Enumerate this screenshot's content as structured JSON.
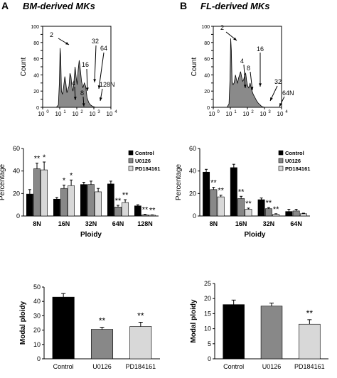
{
  "panels": {
    "A": {
      "letter": "A",
      "title": "BM-derived MKs"
    },
    "B": {
      "letter": "B",
      "title": "FL-derived MKs"
    }
  },
  "chart_data": [
    {
      "id": "A-hist",
      "type": "area",
      "title": "",
      "xlabel": "",
      "ylabel": "Count",
      "yticks": [
        "0",
        "10",
        "20",
        "30",
        "40",
        "50",
        "60",
        "70",
        "80",
        "90",
        "100"
      ],
      "xticks": [
        "10",
        "10",
        "10",
        "10",
        "10"
      ],
      "xtick_exponents": [
        "0",
        "1",
        "2",
        "3",
        "4"
      ],
      "xlim": [
        0,
        4
      ],
      "ylim": [
        0,
        100
      ],
      "x": [
        0.0,
        0.8,
        0.92,
        0.98,
        1.02,
        1.06,
        1.1,
        1.16,
        1.22,
        1.3,
        1.36,
        1.42,
        1.48,
        1.54,
        1.6,
        1.66,
        1.72,
        1.78,
        1.84,
        1.9,
        1.96,
        2.02,
        2.08,
        2.14,
        2.2,
        2.28,
        2.36,
        2.44,
        2.52,
        2.6,
        2.7,
        2.8,
        2.95,
        3.1,
        4.0
      ],
      "y": [
        0,
        0,
        3,
        30,
        73,
        62,
        20,
        16,
        24,
        38,
        30,
        18,
        22,
        26,
        42,
        38,
        24,
        20,
        34,
        50,
        38,
        28,
        46,
        58,
        48,
        32,
        24,
        30,
        26,
        12,
        6,
        3,
        1,
        0,
        0
      ],
      "annotations": [
        "2",
        "4",
        "8",
        "16",
        "32",
        "64",
        "128N"
      ]
    },
    {
      "id": "B-hist",
      "type": "area",
      "title": "",
      "xlabel": "",
      "ylabel": "Count",
      "yticks": [
        "0",
        "10",
        "20",
        "30",
        "40",
        "50",
        "60",
        "70",
        "80",
        "90",
        "100"
      ],
      "xticks": [
        "10",
        "10",
        "10",
        "10",
        "10"
      ],
      "xtick_exponents": [
        "0",
        "1",
        "2",
        "3",
        "4"
      ],
      "xlim": [
        0,
        4
      ],
      "ylim": [
        0,
        100
      ],
      "x": [
        0.0,
        0.8,
        0.92,
        0.98,
        1.02,
        1.06,
        1.1,
        1.16,
        1.22,
        1.3,
        1.36,
        1.42,
        1.48,
        1.54,
        1.6,
        1.66,
        1.72,
        1.78,
        1.84,
        1.9,
        1.96,
        2.02,
        2.08,
        2.16,
        2.24,
        2.34,
        2.44,
        2.54,
        2.64,
        2.74,
        2.84,
        3.0,
        4.0
      ],
      "y": [
        0,
        0,
        4,
        35,
        85,
        70,
        32,
        28,
        30,
        40,
        34,
        30,
        36,
        40,
        44,
        38,
        32,
        34,
        40,
        42,
        32,
        26,
        24,
        30,
        22,
        16,
        12,
        8,
        5,
        3,
        1,
        0,
        0
      ],
      "annotations": [
        "2",
        "4",
        "8",
        "16",
        "32",
        "64N"
      ]
    },
    {
      "id": "A-ploidy",
      "type": "bar",
      "title": "",
      "xlabel": "Ploidy",
      "ylabel": "Percentage",
      "categories": [
        "8N",
        "16N",
        "32N",
        "64N",
        "128N"
      ],
      "ylim": [
        0,
        60
      ],
      "yticks": [
        "0",
        "20",
        "40",
        "60"
      ],
      "legend": "top-right",
      "series": [
        {
          "name": "Control",
          "color": "#000000",
          "values": [
            19.5,
            15,
            28,
            28.5,
            9
          ],
          "errors": [
            4,
            1.5,
            2,
            2.5,
            1
          ]
        },
        {
          "name": "U0126",
          "color": "#888888",
          "values": [
            42,
            24.5,
            28,
            8,
            1
          ],
          "errors": [
            5,
            3,
            3,
            1.5,
            0.5
          ]
        },
        {
          "name": "PD184161",
          "color": "#d8d8d8",
          "values": [
            41,
            27,
            21.5,
            12,
            0.7
          ],
          "errors": [
            7,
            5,
            3,
            2.5,
            0.3
          ]
        }
      ],
      "significance": [
        [
          "",
          "**",
          "*"
        ],
        [
          "",
          "*",
          "*"
        ],
        [
          "",
          "",
          ""
        ],
        [
          "",
          "**",
          "**"
        ],
        [
          "",
          "**",
          "**"
        ]
      ]
    },
    {
      "id": "B-ploidy",
      "type": "bar",
      "title": "",
      "xlabel": "Ploidy",
      "ylabel": "Percentage",
      "categories": [
        "8N",
        "16N",
        "32N",
        "64N"
      ],
      "ylim": [
        0,
        60
      ],
      "yticks": [
        "0",
        "20",
        "40",
        "60"
      ],
      "legend": "top-right",
      "series": [
        {
          "name": "Control",
          "color": "#000000",
          "values": [
            39,
            43,
            14.5,
            4
          ],
          "errors": [
            2.5,
            3,
            1.5,
            2
          ]
        },
        {
          "name": "U0126",
          "color": "#888888",
          "values": [
            23.5,
            15.5,
            6.5,
            4.5
          ],
          "errors": [
            2,
            2,
            1,
            1.5
          ]
        },
        {
          "name": "PD184161",
          "color": "#d8d8d8",
          "values": [
            17,
            6,
            1.5,
            2
          ],
          "errors": [
            1.5,
            1,
            0.5,
            0.5
          ]
        }
      ],
      "significance": [
        [
          "",
          "**",
          "**"
        ],
        [
          "",
          "**",
          "**"
        ],
        [
          "",
          "**",
          "**"
        ],
        [
          "",
          "",
          ""
        ]
      ]
    },
    {
      "id": "A-modal",
      "type": "bar",
      "title": "",
      "xlabel": "",
      "ylabel": "Modal ploidy",
      "categories": [
        "Control",
        "U0126",
        "PD184161"
      ],
      "ylim": [
        0,
        50
      ],
      "yticks": [
        "0",
        "10",
        "20",
        "30",
        "40",
        "50"
      ],
      "values": [
        43,
        20.5,
        22.5
      ],
      "errors": [
        2.5,
        1.5,
        3
      ],
      "colors": [
        "#000000",
        "#888888",
        "#d8d8d8"
      ],
      "significance": [
        "",
        "**",
        "**"
      ]
    },
    {
      "id": "B-modal",
      "type": "bar",
      "title": "",
      "xlabel": "",
      "ylabel": "Modal ploidy",
      "categories": [
        "Control",
        "U0126",
        "PD184161"
      ],
      "ylim": [
        0,
        25
      ],
      "yticks": [
        "0",
        "5",
        "10",
        "15",
        "20",
        "25"
      ],
      "values": [
        18,
        17.5,
        11.5
      ],
      "errors": [
        1.5,
        1,
        1.5
      ],
      "colors": [
        "#000000",
        "#888888",
        "#d8d8d8"
      ],
      "significance": [
        "",
        "",
        "**"
      ]
    }
  ]
}
